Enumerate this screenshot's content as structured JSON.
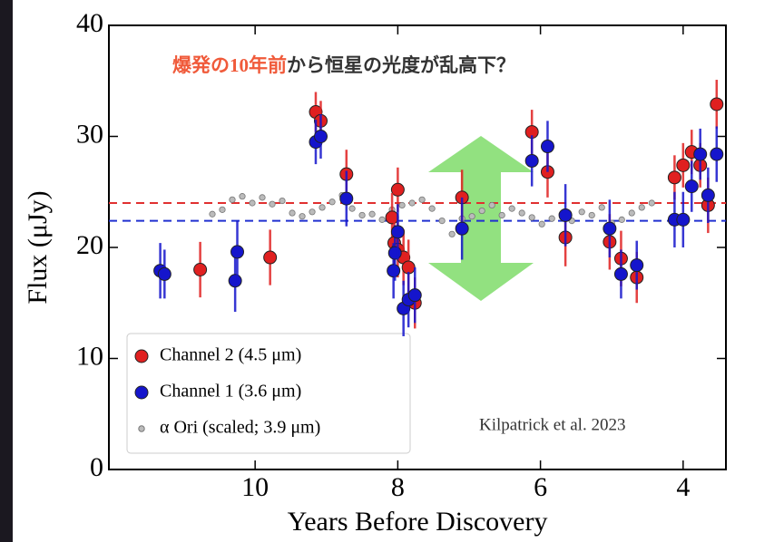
{
  "chart_data": {
    "type": "scatter",
    "title_highlight": "爆発の10年前",
    "title_rest": "から恒星の光度が乱高下？",
    "x_label": "Years Before Discovery",
    "y_label": "Flux (μJy)",
    "annotation": "Kilpatrick et al. 2023",
    "xlim": [
      12.05,
      3.4
    ],
    "ylim": [
      0,
      40
    ],
    "xticks": [
      10,
      8,
      6,
      4
    ],
    "yticks": [
      0,
      10,
      20,
      30,
      40
    ],
    "legend": "lower left",
    "reference_lines": [
      {
        "value": 24.0,
        "color": "#e03030"
      },
      {
        "value": 22.4,
        "color": "#2030d0"
      }
    ],
    "series": [
      {
        "name": "Channel 2 (4.5 μm)",
        "color": "#e02020",
        "x": [
          10.77,
          9.79,
          9.15,
          9.08,
          8.72,
          8.0,
          8.08,
          8.05,
          8.0,
          7.92,
          7.85,
          7.76,
          7.1,
          6.12,
          5.9,
          5.65,
          5.03,
          4.87,
          4.65,
          4.12,
          4.0,
          3.88,
          3.76,
          3.65,
          3.53
        ],
        "values": [
          18.0,
          19.1,
          32.2,
          31.4,
          26.6,
          25.2,
          22.7,
          20.4,
          19.8,
          19.1,
          18.2,
          15.0,
          24.5,
          30.4,
          26.8,
          20.9,
          20.5,
          19.0,
          17.3,
          26.3,
          27.4,
          28.6,
          27.4,
          23.8,
          32.9
        ],
        "errors": [
          2.5,
          2.5,
          1.8,
          1.8,
          2.2,
          2.0,
          2.2,
          2.5,
          2.5,
          2.5,
          2.5,
          2.3,
          2.5,
          2.0,
          2.3,
          2.6,
          2.5,
          2.5,
          2.3,
          2.0,
          2.0,
          2.0,
          2.0,
          2.5,
          2.2
        ]
      },
      {
        "name": "Channel 1 (3.6 μm)",
        "color": "#1515cc",
        "x": [
          11.33,
          11.27,
          10.28,
          10.25,
          9.15,
          9.08,
          8.72,
          8.06,
          8.04,
          8.0,
          7.92,
          7.85,
          7.76,
          7.1,
          6.12,
          5.9,
          5.65,
          5.03,
          4.87,
          4.65,
          4.12,
          4.0,
          3.88,
          3.76,
          3.65,
          3.53
        ],
        "values": [
          17.9,
          17.6,
          17.0,
          19.6,
          29.5,
          30.0,
          24.4,
          17.9,
          19.5,
          21.4,
          14.5,
          15.3,
          15.7,
          21.7,
          27.8,
          29.1,
          22.9,
          21.7,
          17.6,
          18.4,
          22.5,
          22.5,
          25.5,
          28.4,
          24.7,
          28.4
        ],
        "errors": [
          2.5,
          2.2,
          2.8,
          2.8,
          2.0,
          2.0,
          2.5,
          2.5,
          2.5,
          2.5,
          2.5,
          2.5,
          2.5,
          2.8,
          2.3,
          2.3,
          2.8,
          2.6,
          2.2,
          2.2,
          2.5,
          2.5,
          2.3,
          2.3,
          2.5,
          2.5
        ]
      },
      {
        "name": "α Ori (scaled; 3.9 μm)",
        "color": "#bbbbbb",
        "x": [
          10.6,
          10.46,
          10.32,
          10.18,
          10.04,
          9.9,
          9.76,
          9.62,
          9.48,
          9.34,
          9.2,
          9.06,
          8.92,
          8.78,
          8.64,
          8.5,
          8.36,
          8.22,
          8.08,
          7.94,
          7.8,
          7.66,
          7.52,
          7.38,
          7.24,
          7.1,
          6.96,
          6.82,
          6.68,
          6.54,
          6.4,
          6.26,
          6.12,
          5.98,
          5.84,
          5.7,
          5.56,
          5.42,
          5.28,
          5.14,
          5.0,
          4.86,
          4.72,
          4.58,
          4.44
        ],
        "values": [
          23.0,
          23.4,
          24.3,
          24.6,
          24.0,
          24.5,
          23.9,
          24.2,
          23.1,
          22.8,
          23.2,
          23.6,
          24.1,
          24.7,
          23.5,
          22.9,
          23.0,
          22.5,
          23.4,
          23.8,
          24.0,
          24.3,
          23.5,
          22.4,
          21.2,
          22.6,
          22.8,
          23.3,
          23.8,
          22.9,
          23.5,
          23.1,
          22.7,
          22.1,
          22.6,
          23.0,
          22.4,
          23.2,
          22.9,
          23.6,
          22.2,
          22.5,
          23.1,
          23.6,
          24.0
        ]
      }
    ]
  }
}
